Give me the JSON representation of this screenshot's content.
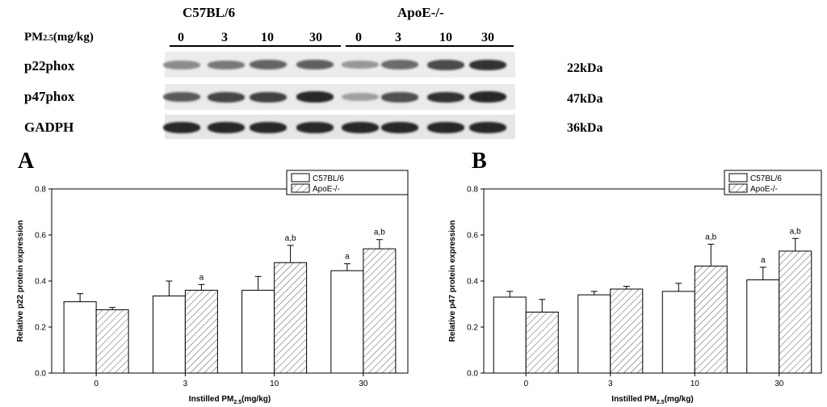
{
  "blot": {
    "strains": [
      "C57BL/6",
      "ApoE-/-"
    ],
    "pm_label": "PM",
    "pm_sub": "2.5",
    "pm_unit": "(mg/kg)",
    "doses": [
      "0",
      "3",
      "10",
      "30",
      "0",
      "3",
      "10",
      "30"
    ],
    "rows": [
      {
        "protein": "p22phox",
        "kda": "22kDa",
        "intensity": [
          0.45,
          0.55,
          0.65,
          0.68,
          0.4,
          0.62,
          0.78,
          0.9
        ]
      },
      {
        "protein": "p47phox",
        "kda": "47kDa",
        "intensity": [
          0.7,
          0.8,
          0.82,
          0.95,
          0.35,
          0.75,
          0.9,
          0.95
        ]
      },
      {
        "protein": "GADPH",
        "kda": "36kDa",
        "intensity": [
          0.95,
          0.95,
          0.95,
          0.95,
          0.95,
          0.95,
          0.95,
          0.95
        ]
      }
    ]
  },
  "chart_data": [
    {
      "type": "bar",
      "panel": "A",
      "categories": [
        "0",
        "3",
        "10",
        "30"
      ],
      "xlabel": "Instilled PM",
      "xlabel_sub": "2.5",
      "xlabel_unit": "(mg/kg)",
      "ylabel": "Relative p22 protein expression",
      "ylim": [
        0,
        0.8
      ],
      "yticks": [
        "0.0",
        "0.2",
        "0.4",
        "0.6",
        "0.8"
      ],
      "legend_position": "top-right",
      "series": [
        {
          "name": "C57BL/6",
          "pattern": "plain",
          "values": [
            0.31,
            0.335,
            0.36,
            0.445
          ],
          "errors": [
            0.035,
            0.065,
            0.06,
            0.03
          ],
          "annotations": [
            "",
            "",
            "",
            "a"
          ]
        },
        {
          "name": "ApoE-/-",
          "pattern": "hatched",
          "values": [
            0.275,
            0.36,
            0.48,
            0.54
          ],
          "errors": [
            0.01,
            0.025,
            0.075,
            0.04
          ],
          "annotations": [
            "",
            "a",
            "a,b",
            "a,b"
          ]
        }
      ]
    },
    {
      "type": "bar",
      "panel": "B",
      "categories": [
        "0",
        "3",
        "10",
        "30"
      ],
      "xlabel": "Instilled PM",
      "xlabel_sub": "2.5",
      "xlabel_unit": "(mg/kg)",
      "ylabel": "Relative p47 protein expression",
      "ylim": [
        0,
        0.8
      ],
      "yticks": [
        "0.0",
        "0.2",
        "0.4",
        "0.6",
        "0.8"
      ],
      "legend_position": "top-right",
      "series": [
        {
          "name": "C57BL/6",
          "pattern": "plain",
          "values": [
            0.33,
            0.34,
            0.355,
            0.405
          ],
          "errors": [
            0.025,
            0.015,
            0.035,
            0.055
          ],
          "annotations": [
            "",
            "",
            "",
            "a"
          ]
        },
        {
          "name": "ApoE-/-",
          "pattern": "hatched",
          "values": [
            0.265,
            0.365,
            0.465,
            0.53
          ],
          "errors": [
            0.055,
            0.012,
            0.095,
            0.055
          ],
          "annotations": [
            "",
            "",
            "a,b",
            "a,b"
          ]
        }
      ]
    }
  ]
}
